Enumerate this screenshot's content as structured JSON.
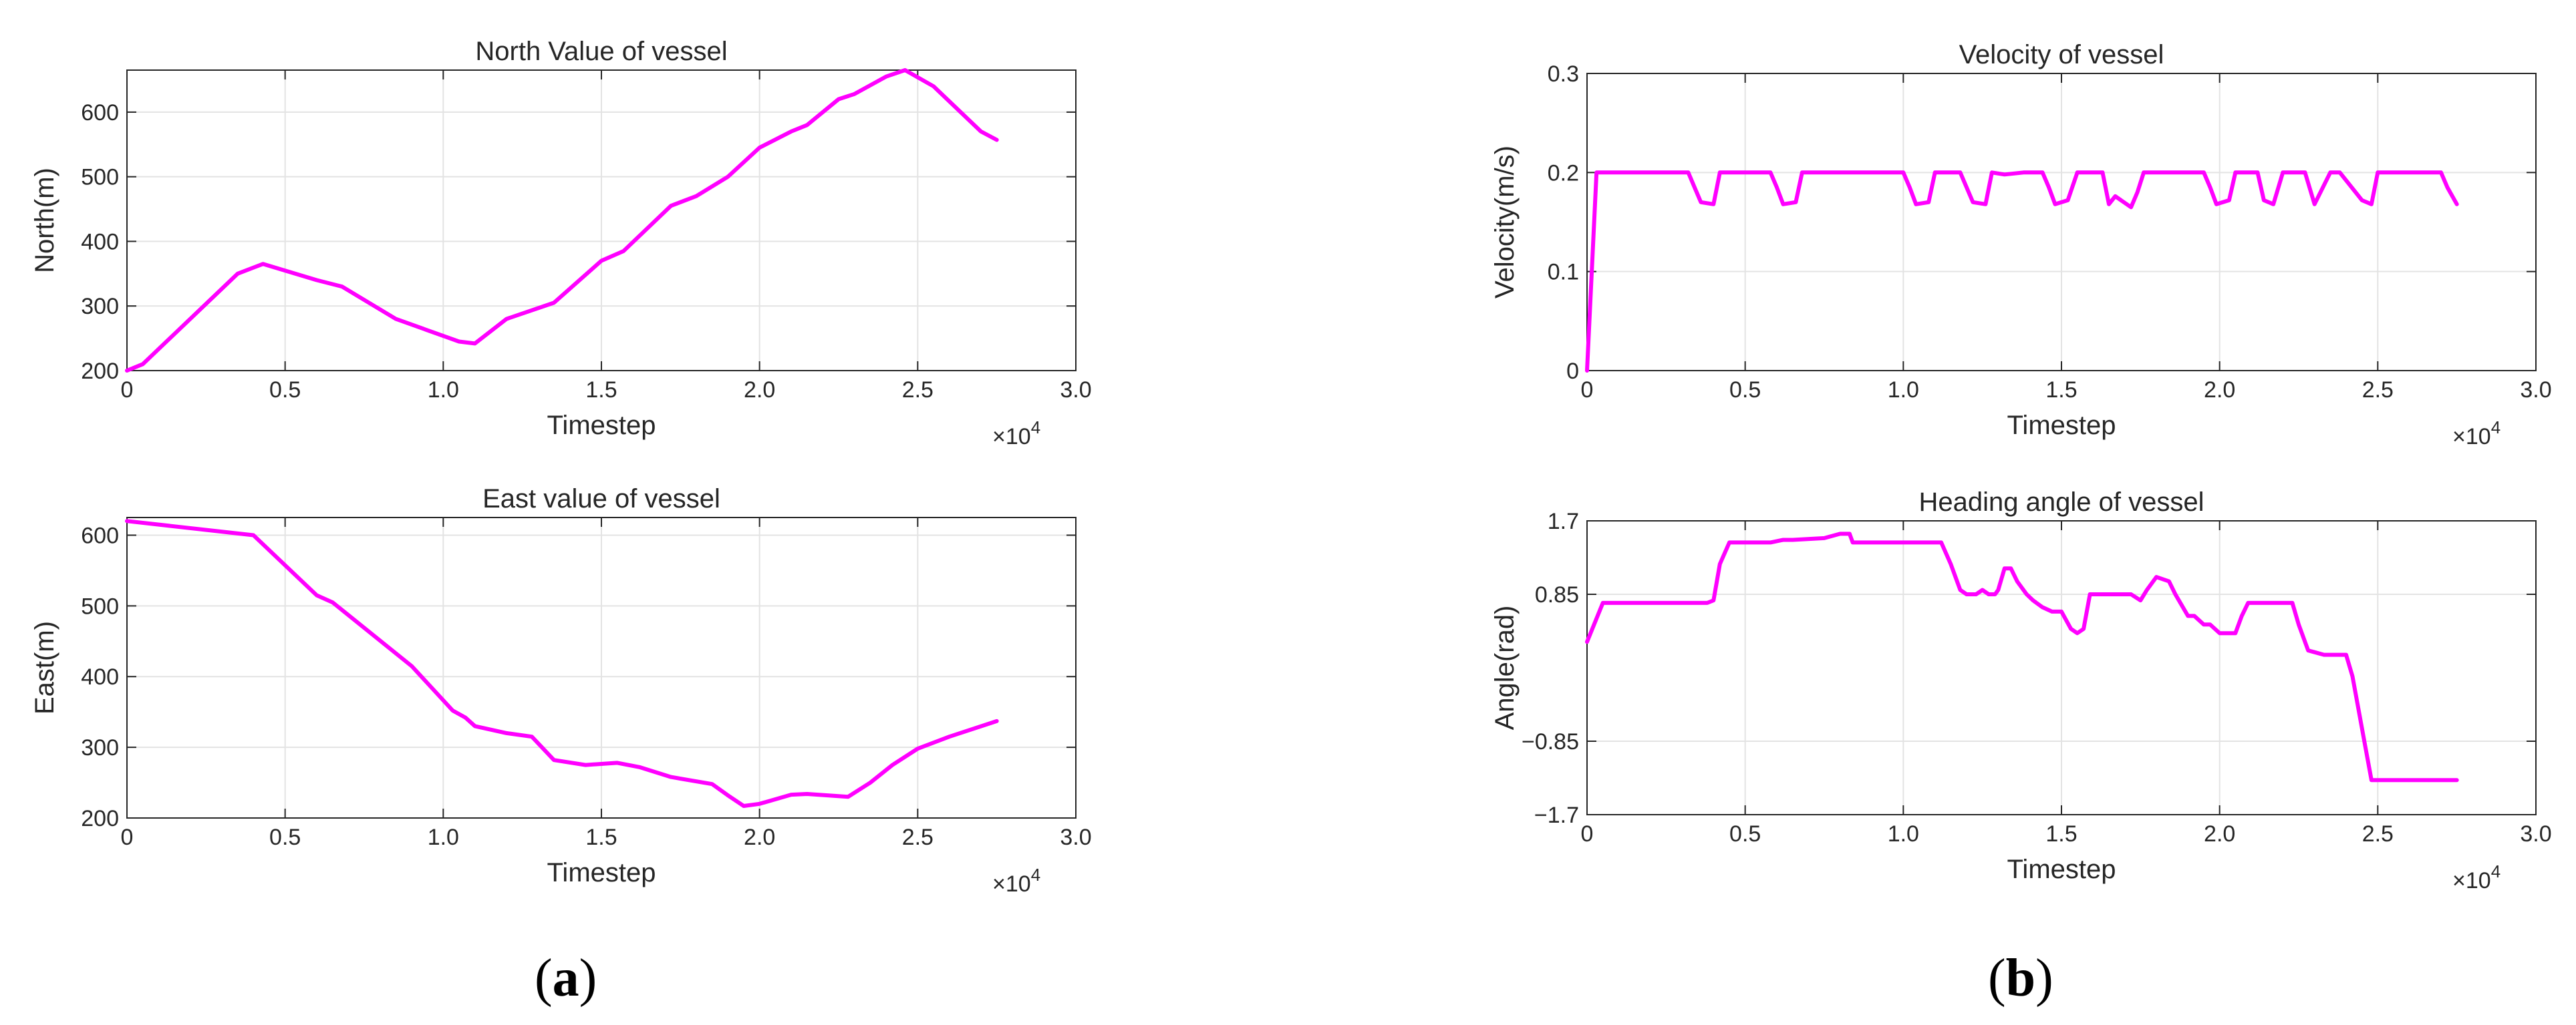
{
  "chart_data": [
    {
      "id": "north",
      "type": "line",
      "title": "North Value of vessel",
      "xlabel": "Timestep",
      "ylabel": "North(m)",
      "x_multiplier": "×10^4",
      "xlim": [
        0,
        3.0
      ],
      "ylim": [
        200,
        665
      ],
      "xticks": [
        0,
        0.5,
        1.0,
        1.5,
        2.0,
        2.5,
        3.0
      ],
      "xtick_labels": [
        "0",
        "0.5",
        "1.0",
        "1.5",
        "2.0",
        "2.5",
        "3.0"
      ],
      "yticks": [
        200,
        300,
        400,
        500,
        600
      ],
      "ytick_labels": [
        "200",
        "300",
        "400",
        "500",
        "600"
      ],
      "grid": true,
      "color": "#ff00ff",
      "series": [
        {
          "x": [
            0,
            0.05,
            0.35,
            0.43,
            0.6,
            0.68,
            0.85,
            1.05,
            1.1,
            1.2,
            1.35,
            1.5,
            1.57,
            1.72,
            1.8,
            1.9,
            2.0,
            2.1,
            2.15,
            2.25,
            2.3,
            2.4,
            2.46,
            2.55,
            2.7,
            2.75
          ],
          "y": [
            200,
            210,
            350,
            365,
            340,
            330,
            280,
            245,
            242,
            280,
            305,
            370,
            385,
            455,
            470,
            500,
            545,
            570,
            580,
            620,
            628,
            655,
            665,
            640,
            570,
            557
          ]
        }
      ]
    },
    {
      "id": "east",
      "type": "line",
      "title": "East value of vessel",
      "xlabel": "Timestep",
      "ylabel": "East(m)",
      "x_multiplier": "×10^4",
      "xlim": [
        0,
        3.0
      ],
      "ylim": [
        200,
        625
      ],
      "xticks": [
        0,
        0.5,
        1.0,
        1.5,
        2.0,
        2.5,
        3.0
      ],
      "xtick_labels": [
        "0",
        "0.5",
        "1.0",
        "1.5",
        "2.0",
        "2.5",
        "3.0"
      ],
      "yticks": [
        200,
        300,
        400,
        500,
        600
      ],
      "ytick_labels": [
        "200",
        "300",
        "400",
        "500",
        "600"
      ],
      "grid": true,
      "color": "#ff00ff",
      "series": [
        {
          "x": [
            0,
            0.4,
            0.6,
            0.65,
            0.9,
            1.03,
            1.07,
            1.1,
            1.2,
            1.28,
            1.35,
            1.45,
            1.55,
            1.62,
            1.72,
            1.85,
            1.9,
            1.95,
            2.0,
            2.1,
            2.15,
            2.28,
            2.35,
            2.42,
            2.5,
            2.6,
            2.75
          ],
          "y": [
            620,
            600,
            515,
            505,
            415,
            352,
            342,
            330,
            320,
            315,
            282,
            275,
            278,
            272,
            258,
            248,
            232,
            217,
            220,
            233,
            234,
            230,
            250,
            275,
            298,
            315,
            337
          ]
        }
      ]
    },
    {
      "id": "velocity",
      "type": "line",
      "title": "Velocity of vessel",
      "xlabel": "Timestep",
      "ylabel": "Velocity(m/s)",
      "x_multiplier": "×10^4",
      "xlim": [
        0,
        3.0
      ],
      "ylim": [
        0,
        0.3
      ],
      "xticks": [
        0,
        0.5,
        1.0,
        1.5,
        2.0,
        2.5,
        3.0
      ],
      "xtick_labels": [
        "0",
        "0.5",
        "1.0",
        "1.5",
        "2.0",
        "2.5",
        "3.0"
      ],
      "yticks": [
        0,
        0.1,
        0.2,
        0.3
      ],
      "ytick_labels": [
        "0",
        "0.1",
        "0.2",
        "0.3"
      ],
      "grid": true,
      "color": "#ff00ff",
      "series": [
        {
          "x": [
            0,
            0.03,
            0.32,
            0.34,
            0.36,
            0.4,
            0.42,
            0.58,
            0.6,
            0.62,
            0.66,
            0.68,
            1.0,
            1.02,
            1.04,
            1.08,
            1.1,
            1.18,
            1.2,
            1.22,
            1.26,
            1.28,
            1.32,
            1.38,
            1.44,
            1.46,
            1.48,
            1.52,
            1.55,
            1.63,
            1.65,
            1.67,
            1.72,
            1.74,
            1.76,
            1.78,
            1.82,
            1.85,
            1.95,
            1.97,
            1.99,
            2.03,
            2.05,
            2.12,
            2.14,
            2.17,
            2.2,
            2.27,
            2.3,
            2.35,
            2.38,
            2.45,
            2.48,
            2.5,
            2.7,
            2.72,
            2.75
          ],
          "y": [
            0,
            0.2,
            0.2,
            0.185,
            0.17,
            0.168,
            0.2,
            0.2,
            0.185,
            0.168,
            0.17,
            0.2,
            0.2,
            0.185,
            0.168,
            0.17,
            0.2,
            0.2,
            0.185,
            0.17,
            0.168,
            0.2,
            0.198,
            0.2,
            0.2,
            0.185,
            0.168,
            0.172,
            0.2,
            0.2,
            0.168,
            0.176,
            0.165,
            0.18,
            0.2,
            0.2,
            0.2,
            0.2,
            0.2,
            0.185,
            0.168,
            0.172,
            0.2,
            0.2,
            0.172,
            0.168,
            0.2,
            0.2,
            0.168,
            0.2,
            0.2,
            0.172,
            0.168,
            0.2,
            0.2,
            0.185,
            0.168
          ]
        }
      ]
    },
    {
      "id": "heading",
      "type": "line",
      "title": "Heading angle of vessel",
      "xlabel": "Timestep",
      "ylabel": "Angle(rad)",
      "x_multiplier": "×10^4",
      "xlim": [
        0,
        3.0
      ],
      "ylim": [
        -1.7,
        1.7
      ],
      "xticks": [
        0,
        0.5,
        1.0,
        1.5,
        2.0,
        2.5,
        3.0
      ],
      "xtick_labels": [
        "0",
        "0.5",
        "1.0",
        "1.5",
        "2.0",
        "2.5",
        "3.0"
      ],
      "yticks": [
        -1.7,
        -0.85,
        0.85,
        1.7
      ],
      "ytick_labels": [
        "−1.7",
        "−0.85",
        "0.85",
        "1.7"
      ],
      "grid": true,
      "color": "#ff00ff",
      "series": [
        {
          "x": [
            0,
            0.05,
            0.38,
            0.4,
            0.42,
            0.45,
            0.58,
            0.62,
            0.65,
            0.75,
            0.8,
            0.83,
            0.84,
            1.08,
            1.12,
            1.15,
            1.18,
            1.2,
            1.23,
            1.25,
            1.27,
            1.29,
            1.3,
            1.32,
            1.34,
            1.36,
            1.39,
            1.41,
            1.44,
            1.47,
            1.5,
            1.53,
            1.55,
            1.57,
            1.59,
            1.62,
            1.72,
            1.75,
            1.77,
            1.8,
            1.84,
            1.86,
            1.9,
            1.92,
            1.95,
            1.97,
            2.0,
            2.05,
            2.07,
            2.09,
            2.12,
            2.15,
            2.23,
            2.25,
            2.28,
            2.3,
            2.33,
            2.37,
            2.4,
            2.42,
            2.46,
            2.48,
            2.75
          ],
          "y": [
            0.3,
            0.75,
            0.75,
            0.78,
            1.2,
            1.45,
            1.45,
            1.48,
            1.48,
            1.5,
            1.55,
            1.55,
            1.45,
            1.45,
            1.45,
            1.2,
            0.9,
            0.85,
            0.85,
            0.9,
            0.85,
            0.85,
            0.9,
            1.15,
            1.15,
            1.0,
            0.85,
            0.78,
            0.7,
            0.65,
            0.65,
            0.45,
            0.4,
            0.45,
            0.85,
            0.85,
            0.85,
            0.78,
            0.9,
            1.05,
            1.0,
            0.85,
            0.6,
            0.6,
            0.5,
            0.5,
            0.4,
            0.4,
            0.6,
            0.75,
            0.75,
            0.75,
            0.75,
            0.5,
            0.2,
            0.18,
            0.15,
            0.15,
            0.15,
            -0.1,
            -0.9,
            -1.3,
            -1.3
          ]
        }
      ]
    }
  ],
  "panel_labels": {
    "a": "a",
    "b": "b"
  }
}
